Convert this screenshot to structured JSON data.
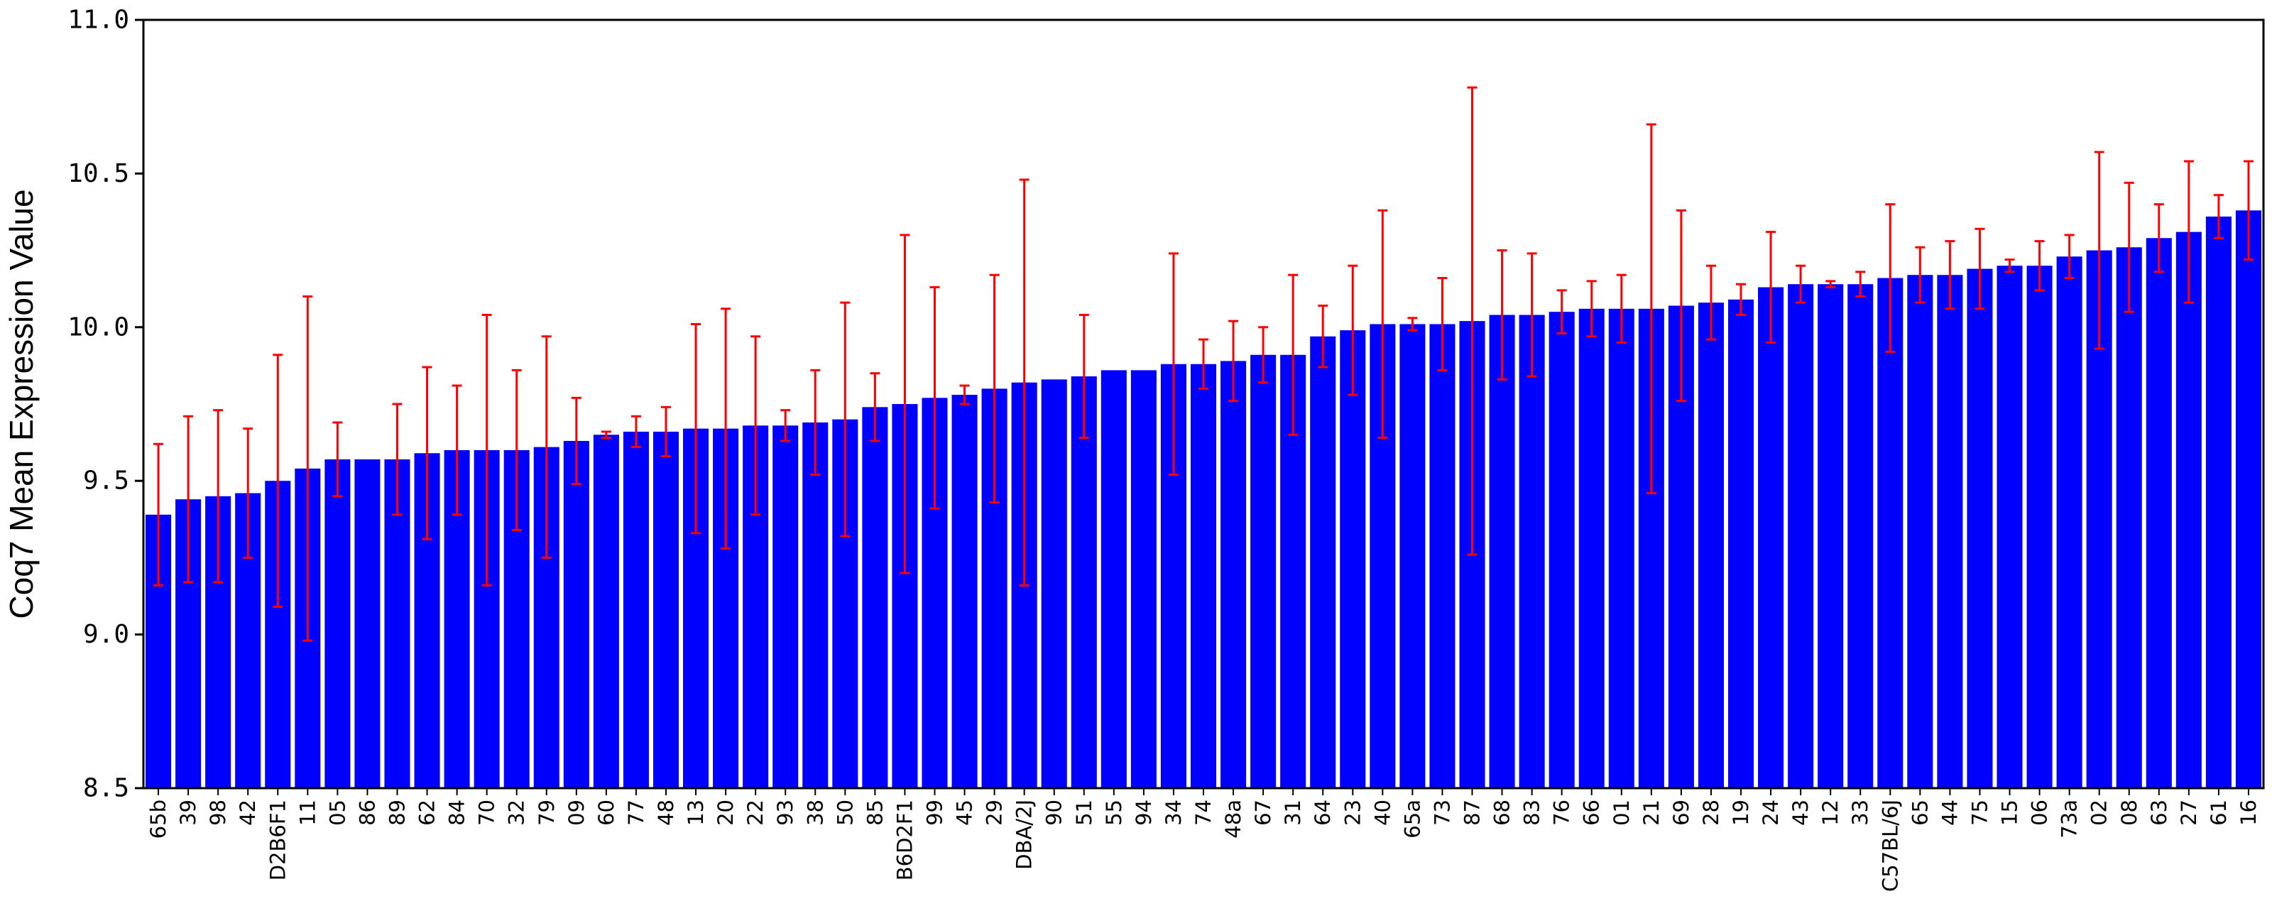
{
  "colors": {
    "bar": "#0000ff",
    "error_bar": "#ff0000",
    "axis": "#000000",
    "background": "#ffffff"
  },
  "chart_data": {
    "type": "bar",
    "title": "",
    "xlabel": "",
    "ylabel": "Coq7 Mean Expression Value",
    "ylim": [
      8.5,
      11.0
    ],
    "yticks": [
      "8.5",
      "9.0",
      "9.5",
      "10.0",
      "10.5",
      "11.0"
    ],
    "grid": false,
    "legend": "none",
    "categories": [
      "65b",
      "39",
      "98",
      "42",
      "D2B6F1",
      "11",
      "05",
      "86",
      "89",
      "62",
      "84",
      "70",
      "32",
      "79",
      "09",
      "60",
      "77",
      "48",
      "13",
      "20",
      "22",
      "93",
      "38",
      "50",
      "85",
      "B6D2F1",
      "99",
      "45",
      "29",
      "DBA/2J",
      "90",
      "51",
      "55",
      "94",
      "34",
      "74",
      "48a",
      "67",
      "31",
      "64",
      "23",
      "40",
      "65a",
      "73",
      "87",
      "68",
      "83",
      "76",
      "66",
      "01",
      "21",
      "69",
      "28",
      "19",
      "24",
      "43",
      "12",
      "33",
      "C57BL/6J",
      "65",
      "44",
      "75",
      "15",
      "06",
      "73a",
      "02",
      "08",
      "63",
      "27",
      "61",
      "16"
    ],
    "values": [
      9.39,
      9.44,
      9.45,
      9.46,
      9.5,
      9.54,
      9.57,
      9.57,
      9.57,
      9.59,
      9.6,
      9.6,
      9.6,
      9.61,
      9.63,
      9.65,
      9.66,
      9.66,
      9.67,
      9.67,
      9.68,
      9.68,
      9.69,
      9.7,
      9.74,
      9.75,
      9.77,
      9.78,
      9.8,
      9.82,
      9.83,
      9.84,
      9.86,
      9.86,
      9.88,
      9.88,
      9.89,
      9.91,
      9.91,
      9.97,
      9.99,
      10.01,
      10.01,
      10.01,
      10.02,
      10.04,
      10.04,
      10.05,
      10.06,
      10.06,
      10.06,
      10.07,
      10.08,
      10.09,
      10.13,
      10.14,
      10.14,
      10.14,
      10.16,
      10.17,
      10.17,
      10.19,
      10.2,
      10.2,
      10.23,
      10.25,
      10.26,
      10.29,
      10.31,
      10.36,
      10.38
    ],
    "error_bars": [
      0.23,
      0.27,
      0.28,
      0.21,
      0.41,
      0.56,
      0.12,
      0.0,
      0.18,
      0.28,
      0.21,
      0.44,
      0.26,
      0.36,
      0.14,
      0.01,
      0.05,
      0.08,
      0.34,
      0.39,
      0.29,
      0.05,
      0.17,
      0.38,
      0.11,
      0.55,
      0.36,
      0.03,
      0.37,
      0.66,
      0.0,
      0.2,
      0.0,
      0.0,
      0.36,
      0.08,
      0.13,
      0.09,
      0.26,
      0.1,
      0.21,
      0.37,
      0.02,
      0.15,
      0.76,
      0.21,
      0.2,
      0.07,
      0.09,
      0.11,
      0.6,
      0.31,
      0.12,
      0.05,
      0.18,
      0.06,
      0.01,
      0.04,
      0.24,
      0.09,
      0.11,
      0.13,
      0.02,
      0.08,
      0.07,
      0.32,
      0.21,
      0.11,
      0.23,
      0.07,
      0.16
    ]
  }
}
